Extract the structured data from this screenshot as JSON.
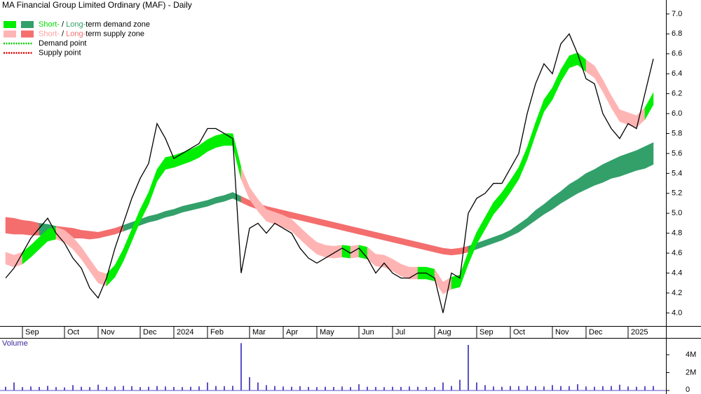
{
  "chart_data": [
    {
      "type": "line",
      "title": "MA Financial Group Limited Ordinary (MAF) - Daily",
      "legend": [
        {
          "swatches": [
            "#00ee00",
            "#33a06a"
          ],
          "parts": [
            {
              "text": "Short-",
              "color": "#00dd00"
            },
            {
              "text": " / "
            },
            {
              "text": "Long-",
              "color": "#33a06a"
            },
            {
              "text": "term demand zone"
            }
          ]
        },
        {
          "swatches": [
            "#ffb4b4",
            "#f46e6e"
          ],
          "parts": [
            {
              "text": "Short-",
              "color": "#ffa0a0"
            },
            {
              "text": " / "
            },
            {
              "text": "Long-",
              "color": "#f46e6e"
            },
            {
              "text": "term supply zone"
            }
          ]
        },
        {
          "line": "#00cc00",
          "parts": [
            {
              "text": "Demand point"
            }
          ]
        },
        {
          "line": "#dd0000",
          "parts": [
            {
              "text": "Supply point"
            }
          ]
        }
      ],
      "categories": [
        null,
        null,
        "Sep",
        null,
        null,
        null,
        null,
        "Oct",
        null,
        null,
        null,
        "Nov",
        null,
        null,
        null,
        null,
        "Dec",
        null,
        null,
        null,
        "2024",
        null,
        null,
        null,
        "Feb",
        null,
        null,
        null,
        null,
        "Mar",
        null,
        null,
        null,
        "Apr",
        null,
        null,
        null,
        "May",
        null,
        null,
        null,
        null,
        "Jun",
        null,
        null,
        null,
        "Jul",
        null,
        null,
        null,
        null,
        "Aug",
        null,
        null,
        null,
        null,
        "Sep",
        null,
        null,
        null,
        "Oct",
        null,
        null,
        null,
        null,
        "Nov",
        null,
        null,
        null,
        "Dec",
        null,
        null,
        null,
        null,
        "2025",
        null,
        null,
        null
      ],
      "values": [
        4.35,
        4.45,
        4.6,
        4.75,
        4.85,
        4.95,
        4.8,
        4.7,
        4.55,
        4.45,
        4.25,
        4.15,
        4.35,
        4.65,
        4.9,
        5.15,
        5.35,
        5.5,
        5.9,
        5.75,
        5.55,
        5.6,
        5.65,
        5.7,
        5.85,
        5.85,
        5.8,
        5.75,
        4.4,
        4.85,
        4.9,
        4.8,
        4.9,
        4.85,
        4.8,
        4.65,
        4.55,
        4.5,
        4.55,
        4.6,
        4.65,
        4.6,
        4.65,
        4.55,
        4.4,
        4.5,
        4.4,
        4.35,
        4.35,
        4.4,
        4.4,
        4.35,
        4.0,
        4.4,
        4.35,
        5.0,
        5.15,
        5.2,
        5.3,
        5.3,
        5.45,
        5.6,
        6.0,
        6.3,
        6.5,
        6.4,
        6.7,
        6.8,
        6.6,
        6.35,
        6.3,
        6.0,
        5.85,
        5.75,
        5.9,
        5.85,
        6.2,
        6.55
      ],
      "color": "#000000",
      "bands": [
        {
          "upper": [
            4.61,
            4.58,
            4.61,
            4.68,
            4.76,
            4.84,
            4.86,
            4.83,
            4.76,
            4.66,
            4.54,
            4.42,
            4.39,
            4.48,
            4.64,
            4.84,
            5.04,
            5.21,
            5.44,
            5.56,
            5.58,
            5.61,
            5.64,
            5.68,
            5.74,
            5.78,
            5.8,
            5.8,
            5.46,
            5.26,
            5.14,
            5.04,
            5.01,
            4.98,
            4.94,
            4.86,
            4.78,
            4.71,
            4.68,
            4.67,
            4.68,
            4.67,
            4.68,
            4.66,
            4.59,
            4.58,
            4.54,
            4.49,
            4.46,
            4.46,
            4.46,
            4.44,
            4.31,
            4.36,
            4.38,
            4.61,
            4.81,
            4.96,
            5.11,
            5.21,
            5.33,
            5.46,
            5.66,
            5.91,
            6.14,
            6.26,
            6.44,
            6.58,
            6.61,
            6.54,
            6.48,
            6.34,
            6.18,
            6.04,
            6.01,
            5.98,
            6.06,
            6.21
          ],
          "lower": [
            4.49,
            4.46,
            4.49,
            4.56,
            4.64,
            4.72,
            4.74,
            4.71,
            4.64,
            4.54,
            4.42,
            4.3,
            4.27,
            4.36,
            4.52,
            4.72,
            4.92,
            5.09,
            5.32,
            5.44,
            5.46,
            5.49,
            5.52,
            5.56,
            5.62,
            5.66,
            5.68,
            5.68,
            5.34,
            5.14,
            5.02,
            4.92,
            4.89,
            4.86,
            4.82,
            4.74,
            4.66,
            4.59,
            4.56,
            4.55,
            4.56,
            4.55,
            4.56,
            4.54,
            4.47,
            4.46,
            4.42,
            4.37,
            4.34,
            4.34,
            4.34,
            4.32,
            4.19,
            4.24,
            4.26,
            4.49,
            4.69,
            4.84,
            4.99,
            5.09,
            5.21,
            5.34,
            5.54,
            5.79,
            6.02,
            6.14,
            6.32,
            6.46,
            6.49,
            6.42,
            6.36,
            6.22,
            6.06,
            5.92,
            5.89,
            5.86,
            5.94,
            6.09
          ]
        },
        {
          "upper": [
            4.96,
            4.95,
            4.93,
            4.92,
            4.9,
            4.89,
            4.87,
            4.86,
            4.85,
            4.83,
            4.82,
            4.81,
            4.83,
            4.85,
            4.88,
            4.91,
            4.94,
            4.97,
            4.99,
            5.02,
            5.04,
            5.07,
            5.09,
            5.11,
            5.13,
            5.16,
            5.18,
            5.21,
            5.17,
            5.13,
            5.1,
            5.07,
            5.05,
            5.03,
            5.01,
            4.99,
            4.97,
            4.95,
            4.93,
            4.91,
            4.89,
            4.87,
            4.85,
            4.83,
            4.81,
            4.79,
            4.77,
            4.75,
            4.73,
            4.71,
            4.69,
            4.67,
            4.65,
            4.64,
            4.65,
            4.67,
            4.7,
            4.73,
            4.76,
            4.79,
            4.83,
            4.89,
            4.95,
            5.03,
            5.09,
            5.16,
            5.22,
            5.29,
            5.34,
            5.4,
            5.44,
            5.49,
            5.53,
            5.57,
            5.6,
            5.63,
            5.67,
            5.71
          ],
          "lower": [
            4.8,
            4.79,
            4.79,
            4.78,
            4.78,
            4.77,
            4.77,
            4.76,
            4.75,
            4.75,
            4.74,
            4.75,
            4.77,
            4.79,
            4.82,
            4.85,
            4.88,
            4.91,
            4.93,
            4.96,
            4.98,
            5.01,
            5.03,
            5.05,
            5.07,
            5.1,
            5.12,
            5.15,
            5.11,
            5.07,
            5.04,
            5.01,
            4.99,
            4.97,
            4.95,
            4.93,
            4.91,
            4.89,
            4.87,
            4.85,
            4.83,
            4.81,
            4.79,
            4.77,
            4.75,
            4.73,
            4.71,
            4.69,
            4.67,
            4.65,
            4.63,
            4.61,
            4.59,
            4.58,
            4.59,
            4.61,
            4.64,
            4.67,
            4.7,
            4.73,
            4.77,
            4.81,
            4.87,
            4.93,
            4.99,
            5.04,
            5.1,
            5.15,
            5.2,
            5.24,
            5.28,
            5.31,
            5.35,
            5.37,
            5.4,
            5.43,
            5.45,
            5.49
          ]
        }
      ],
      "ylim": [
        3.89,
        7.14
      ],
      "yticks": [
        {
          "value": 4,
          "label": "4.0"
        },
        4.2,
        4.4,
        4.6,
        4.8,
        {
          "value": 5,
          "label": "5.0"
        },
        5.2,
        5.4,
        5.6,
        5.8,
        {
          "value": 6,
          "label": "6.0"
        },
        6.2,
        6.4,
        6.6,
        6.8,
        {
          "value": 7,
          "label": "7.0"
        }
      ]
    },
    {
      "type": "bar",
      "title": "Volume",
      "color": "#5a50c8",
      "values": [
        420000,
        900000,
        380000,
        450000,
        400000,
        520000,
        380000,
        350000,
        600000,
        420000,
        380000,
        650000,
        400000,
        450000,
        520000,
        480000,
        380000,
        420000,
        500000,
        450000,
        400000,
        380000,
        420000,
        460000,
        900000,
        500000,
        480000,
        520000,
        5300000,
        1500000,
        900000,
        600000,
        500000,
        450000,
        420000,
        480000,
        400000,
        380000,
        420000,
        400000,
        450000,
        380000,
        700000,
        420000,
        400000,
        380000,
        420000,
        400000,
        450000,
        420000,
        400000,
        380000,
        900000,
        500000,
        1200000,
        5100000,
        900000,
        600000,
        450000,
        420000,
        500000,
        480000,
        520000,
        480000,
        450000,
        600000,
        500000,
        480000,
        700000,
        450000,
        420000,
        480000,
        500000,
        650000,
        450000,
        420000,
        480000,
        500000
      ],
      "ylim": [
        0,
        5650000
      ],
      "yticks": [
        0,
        {
          "value": 2000000,
          "label": "2M"
        },
        {
          "value": 4000000,
          "label": "4M"
        }
      ]
    }
  ]
}
